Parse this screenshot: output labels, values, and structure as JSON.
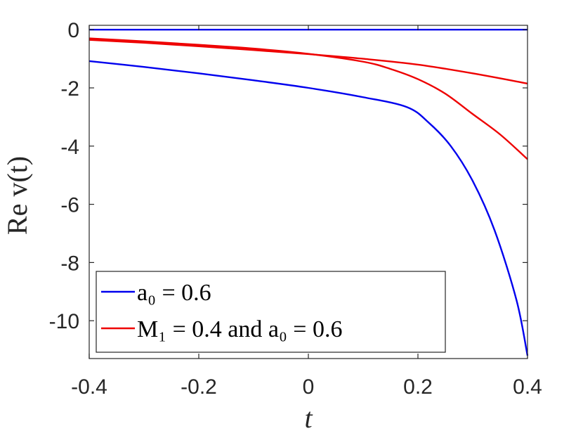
{
  "chart_data": {
    "type": "line",
    "xlabel": "t",
    "ylabel": "Re v(t)",
    "xlim": [
      -0.4,
      0.4
    ],
    "ylim": [
      -11.3,
      0.15
    ],
    "xticks": [
      -0.4,
      -0.2,
      0,
      0.2,
      0.4
    ],
    "xtick_labels": [
      "-0.4",
      "-0.2",
      "0",
      "0.2",
      "0.4"
    ],
    "yticks": [
      0,
      -2,
      -4,
      -6,
      -8,
      -10
    ],
    "ytick_labels": [
      "0",
      "-2",
      "-4",
      "-6",
      "-8",
      "-10"
    ],
    "grid": false,
    "legend_position": "bottom-left",
    "colors": {
      "blue": "#0000ee",
      "red": "#ee0000",
      "axis": "#262626"
    },
    "legend": [
      {
        "label": "a₀ = 0.6",
        "color": "#0000ee"
      },
      {
        "label": "M₁ = 0.4 and a₀ = 0.6",
        "color": "#ee0000"
      }
    ],
    "series": [
      {
        "color": "#0000ee",
        "x": [
          -0.4,
          0.4
        ],
        "y": [
          0,
          0
        ]
      },
      {
        "color": "#0000ee",
        "x": [
          -0.4,
          -0.3,
          -0.2,
          -0.1,
          0,
          0.1,
          0.18,
          0.22,
          0.26,
          0.3,
          0.34,
          0.38,
          0.4
        ],
        "y": [
          -1.08,
          -1.28,
          -1.5,
          -1.74,
          -2.0,
          -2.32,
          -2.66,
          -3.2,
          -4.0,
          -5.2,
          -6.9,
          -9.3,
          -11.2
        ]
      },
      {
        "color": "#ee0000",
        "x": [
          -0.4,
          -0.3,
          -0.2,
          -0.1,
          0,
          0.1,
          0.2,
          0.3,
          0.4
        ],
        "y": [
          -0.35,
          -0.45,
          -0.57,
          -0.7,
          -0.84,
          -1.0,
          -1.2,
          -1.5,
          -1.85
        ]
      },
      {
        "color": "#ee0000",
        "x": [
          -0.4,
          -0.3,
          -0.2,
          -0.1,
          0,
          0.1,
          0.15,
          0.2,
          0.25,
          0.3,
          0.35,
          0.4
        ],
        "y": [
          -0.3,
          -0.4,
          -0.52,
          -0.65,
          -0.83,
          -1.1,
          -1.35,
          -1.7,
          -2.2,
          -2.9,
          -3.6,
          -4.45
        ]
      }
    ]
  }
}
